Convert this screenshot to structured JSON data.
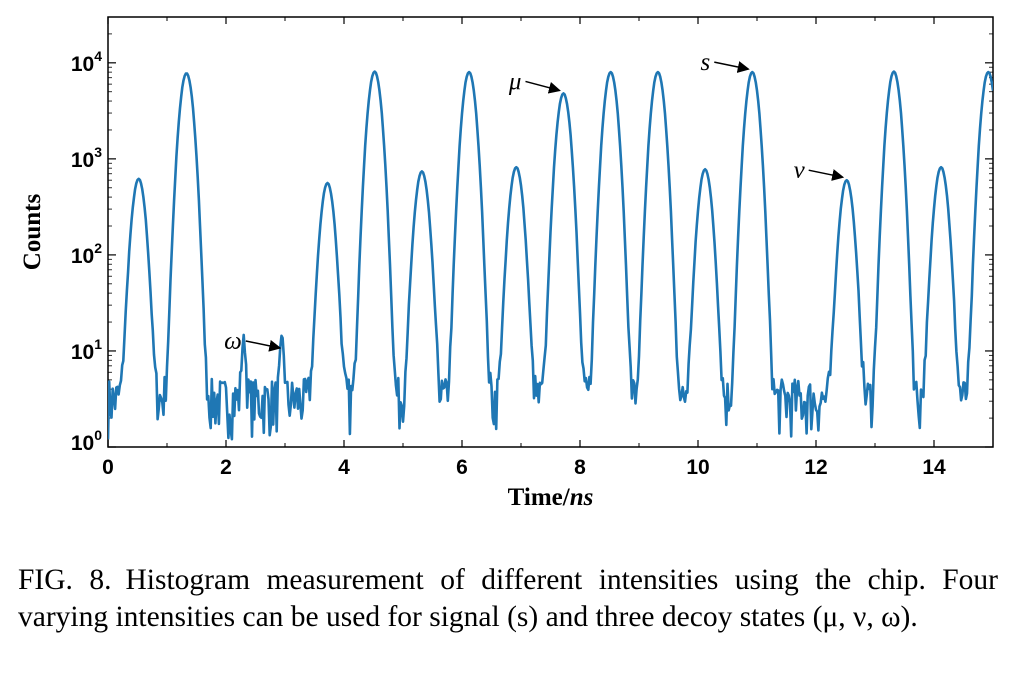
{
  "chart_data": {
    "type": "line",
    "title": "",
    "xlabel": "Time/ns",
    "ylabel": "Counts",
    "xlim": [
      0,
      15
    ],
    "ylim": [
      1,
      30000
    ],
    "yscale": "log",
    "xticks": [
      0,
      2,
      4,
      6,
      8,
      10,
      12,
      14
    ],
    "yticks": [
      1,
      10,
      100,
      1000,
      10000
    ],
    "grid": false,
    "line_color": "#1f77b4",
    "peaks": [
      {
        "t": 0.52,
        "counts": 620
      },
      {
        "t": 1.33,
        "counts": 7800
      },
      {
        "t": 3.72,
        "counts": 560
      },
      {
        "t": 4.52,
        "counts": 8100
      },
      {
        "t": 5.32,
        "counts": 740
      },
      {
        "t": 6.12,
        "counts": 8000
      },
      {
        "t": 6.92,
        "counts": 820
      },
      {
        "t": 7.72,
        "counts": 4800
      },
      {
        "t": 8.52,
        "counts": 8000
      },
      {
        "t": 9.32,
        "counts": 8000
      },
      {
        "t": 10.12,
        "counts": 780
      },
      {
        "t": 10.92,
        "counts": 8000
      },
      {
        "t": 12.52,
        "counts": 600
      },
      {
        "t": 13.32,
        "counts": 8100
      },
      {
        "t": 14.12,
        "counts": 820
      },
      {
        "t": 14.92,
        "counts": 8000
      }
    ],
    "background_counts": {
      "t_range": [
        0,
        15
      ],
      "typical": 3
    },
    "small_peaks": [
      {
        "t": 2.3,
        "counts": 10
      },
      {
        "t": 2.95,
        "counts": 10
      }
    ],
    "annotations": [
      {
        "text": "ω",
        "x": 2.98,
        "y": 10
      },
      {
        "text": "μ",
        "x": 7.72,
        "y": 4800
      },
      {
        "text": "s",
        "x": 10.92,
        "y": 8000
      },
      {
        "text": "ν",
        "x": 12.52,
        "y": 600
      }
    ]
  },
  "caption": {
    "label": "FIG. 8.",
    "text": "Histogram measurement of different intensities using the chip. Four varying intensities can be used for signal (s) and three decoy states (μ, ν, ω)."
  }
}
